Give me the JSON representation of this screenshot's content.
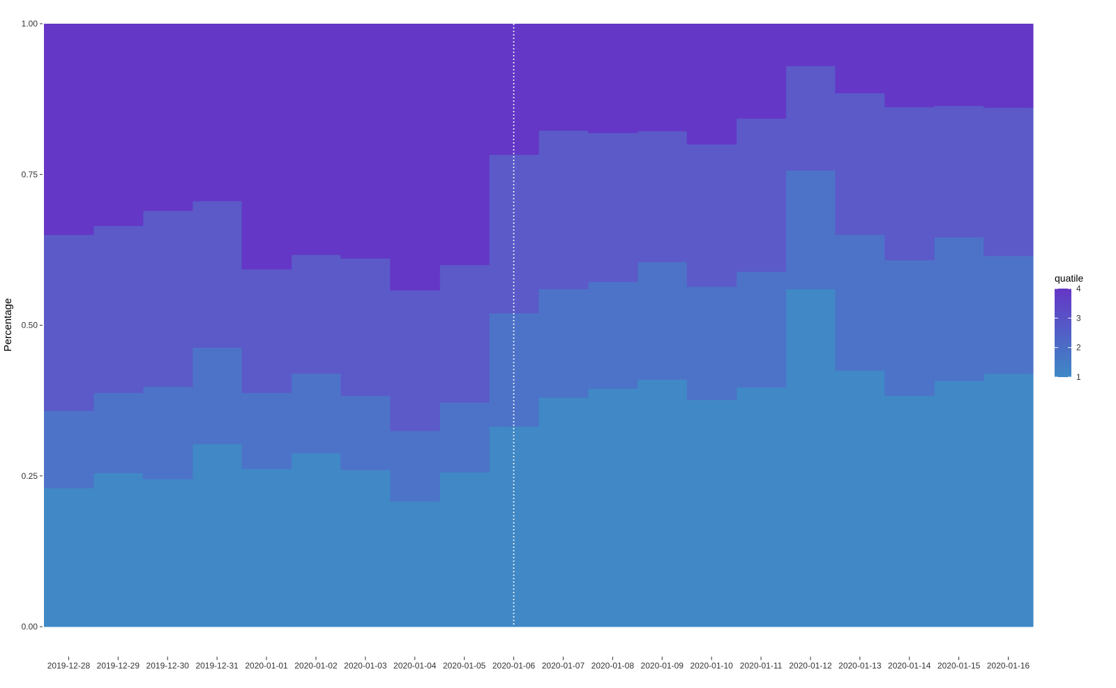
{
  "chart_data": {
    "type": "area",
    "stacked": true,
    "normalized": true,
    "ylabel": "Percentage",
    "xlabel": "",
    "ylim": [
      0,
      1
    ],
    "y_ticks": [
      0,
      0.25,
      0.5,
      0.75,
      1
    ],
    "y_tick_labels": [
      "0.00",
      "0.25",
      "0.50",
      "0.75",
      "1.00"
    ],
    "grid": false,
    "legend_position": "right",
    "legend": {
      "title": "quatile",
      "labels": [
        "4",
        "3",
        "2",
        "1"
      ],
      "color_low": "#3e89c6",
      "color_high": "#6536c6"
    },
    "categories": [
      "2019-12-28",
      "2019-12-29",
      "2019-12-30",
      "2019-12-31",
      "2020-01-01",
      "2020-01-02",
      "2020-01-03",
      "2020-01-04",
      "2020-01-05",
      "2020-01-06",
      "2020-01-07",
      "2020-01-08",
      "2020-01-09",
      "2020-01-10",
      "2020-01-11",
      "2020-01-12",
      "2020-01-13",
      "2020-01-14",
      "2020-01-15",
      "2020-01-16"
    ],
    "vline_category": "2020-01-06",
    "vline_color": "#ffffff",
    "series": [
      {
        "name": "1",
        "color": "#4088c6",
        "values": [
          0.23,
          0.255,
          0.245,
          0.303,
          0.262,
          0.288,
          0.26,
          0.208,
          0.256,
          0.332,
          0.38,
          0.395,
          0.41,
          0.376,
          0.397,
          0.56,
          0.425,
          0.383,
          0.408,
          0.42
        ]
      },
      {
        "name": "2",
        "color": "#4d73c8",
        "values": [
          0.128,
          0.133,
          0.153,
          0.16,
          0.126,
          0.132,
          0.123,
          0.117,
          0.116,
          0.188,
          0.18,
          0.177,
          0.195,
          0.188,
          0.192,
          0.197,
          0.225,
          0.225,
          0.238,
          0.195
        ]
      },
      {
        "name": "3",
        "color": "#5b5ac8",
        "values": [
          0.292,
          0.277,
          0.292,
          0.243,
          0.205,
          0.197,
          0.228,
          0.233,
          0.228,
          0.263,
          0.263,
          0.247,
          0.217,
          0.236,
          0.254,
          0.173,
          0.235,
          0.254,
          0.218,
          0.246
        ]
      },
      {
        "name": "4",
        "color": "#6437c6",
        "values": [
          0.35,
          0.335,
          0.31,
          0.294,
          0.407,
          0.383,
          0.389,
          0.442,
          0.4,
          0.217,
          0.177,
          0.181,
          0.178,
          0.2,
          0.157,
          0.07,
          0.115,
          0.138,
          0.136,
          0.139
        ]
      }
    ]
  }
}
